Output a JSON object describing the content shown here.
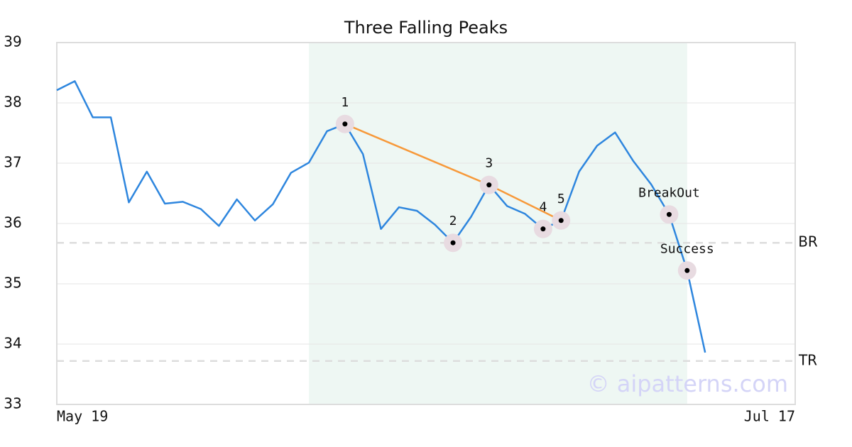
{
  "chart_data": {
    "type": "line",
    "title": "Three Falling Peaks",
    "x": [
      0,
      1,
      2,
      3,
      4,
      5,
      6,
      7,
      8,
      9,
      10,
      11,
      12,
      13,
      14,
      15,
      16,
      17,
      18,
      19,
      20,
      21,
      22,
      23,
      24,
      25,
      26,
      27,
      28,
      29,
      30,
      31,
      32,
      33,
      34,
      35,
      36
    ],
    "values": [
      38.21,
      38.36,
      37.76,
      37.76,
      36.35,
      36.86,
      36.33,
      36.36,
      36.24,
      35.96,
      36.4,
      36.05,
      36.32,
      36.84,
      37.01,
      37.53,
      37.65,
      37.15,
      35.91,
      36.27,
      36.21,
      35.98,
      35.68,
      36.11,
      36.64,
      36.29,
      36.16,
      35.91,
      36.05,
      36.86,
      37.29,
      37.51,
      37.04,
      36.65,
      36.15,
      35.22,
      33.86
    ],
    "color": "#2e86de",
    "xlim": [
      0,
      41
    ],
    "xticks": [
      {
        "value": 0,
        "label": "May 19"
      },
      {
        "value": 41,
        "label": "Jul 17"
      }
    ],
    "ylim": [
      33,
      39
    ],
    "yticks": [
      33,
      34,
      35,
      36,
      37,
      38,
      39
    ],
    "grid": true,
    "shaded_region": {
      "x": [
        14,
        35
      ],
      "color": "#eef7f3"
    },
    "levels": [
      {
        "label": "BR",
        "value": 35.68
      },
      {
        "label": "TR",
        "value": 33.72
      }
    ],
    "points": [
      {
        "label": "1",
        "x": 16
      },
      {
        "label": "2",
        "x": 22
      },
      {
        "label": "3",
        "x": 24
      },
      {
        "label": "4",
        "x": 27
      },
      {
        "label": "5",
        "x": 28
      },
      {
        "label": "BreakOut",
        "x": 34
      },
      {
        "label": "Success",
        "x": 35
      }
    ],
    "pattern_line": {
      "x": [
        16,
        24,
        28
      ],
      "color": "#f7993a"
    },
    "watermark": "© aipatterns.com"
  }
}
